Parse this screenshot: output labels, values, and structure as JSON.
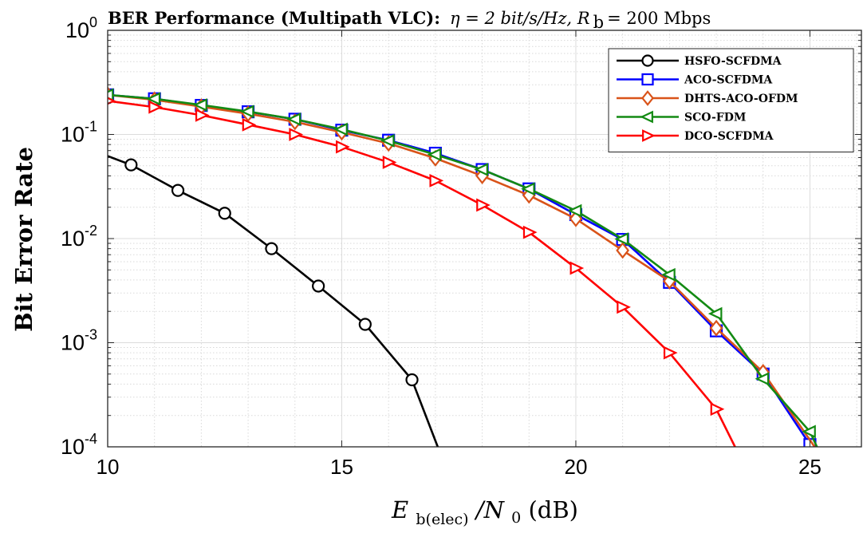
{
  "chart_data": {
    "type": "line",
    "title": "BER Performance (Multipath VLC): η = 2 bit/s/Hz, R_b = 200 Mbps",
    "title_bold": "BER Performance (Multipath VLC):",
    "title_rest": "η = 2 bit/s/Hz, R",
    "title_sub": "b",
    "title_tail": " = 200 Mbps",
    "xlabel": "E_b(elec)/N_0 (dB)",
    "xlabel_main": "E",
    "xlabel_sub": "b(elec)",
    "xlabel_mid": "/N",
    "xlabel_sub2": "0",
    "xlabel_tail": " (dB)",
    "ylabel": "Bit Error Rate",
    "xlim": [
      10,
      26.1
    ],
    "ylim": [
      0.0001,
      1
    ],
    "yscale": "log",
    "grid": true,
    "legend_position": "top-right",
    "x_ticks": [
      "10",
      "15",
      "20",
      "25"
    ],
    "x_tick_values": [
      10,
      15,
      20,
      25
    ],
    "y_ticks": [
      {
        "base": "10",
        "exp": "0",
        "value": 1
      },
      {
        "base": "10",
        "exp": "-1",
        "value": 0.1
      },
      {
        "base": "10",
        "exp": "-2",
        "value": 0.01
      },
      {
        "base": "10",
        "exp": "-3",
        "value": 0.001
      },
      {
        "base": "10",
        "exp": "-4",
        "value": 0.0001
      }
    ],
    "series": [
      {
        "name": "HSFO-SCFDMA",
        "color": "#000000",
        "marker": "circle",
        "x": [
          10,
          10.5,
          11.5,
          12.5,
          13.5,
          14.5,
          15.5,
          16.5,
          17.05
        ],
        "y": [
          0.062,
          0.051,
          0.029,
          0.0175,
          0.008,
          0.0035,
          0.0015,
          0.00044,
          0.0001
        ],
        "markers": [
          false,
          true,
          true,
          true,
          true,
          true,
          true,
          true,
          false
        ]
      },
      {
        "name": "ACO-SCFDMA",
        "color": "#0000ff",
        "marker": "square",
        "x": [
          10,
          11,
          12,
          13,
          14,
          15,
          16,
          17,
          18,
          19,
          20,
          21,
          22,
          23,
          24,
          25
        ],
        "y": [
          0.24,
          0.22,
          0.19,
          0.165,
          0.14,
          0.11,
          0.088,
          0.066,
          0.046,
          0.03,
          0.017,
          0.0098,
          0.0038,
          0.0013,
          0.0005,
          0.000105
        ],
        "markers": [
          true,
          true,
          true,
          true,
          true,
          true,
          true,
          true,
          true,
          true,
          true,
          true,
          true,
          true,
          true,
          true
        ]
      },
      {
        "name": "DHTS-ACO-OFDM",
        "color": "#d95319",
        "marker": "diamond",
        "x": [
          10,
          11,
          12,
          13,
          14,
          15,
          16,
          17,
          18,
          19,
          20,
          21,
          22,
          23,
          24,
          25.1
        ],
        "y": [
          0.24,
          0.215,
          0.185,
          0.158,
          0.132,
          0.105,
          0.082,
          0.059,
          0.04,
          0.026,
          0.0155,
          0.0077,
          0.0039,
          0.00138,
          0.00052,
          0.0001
        ],
        "markers": [
          true,
          true,
          true,
          true,
          true,
          true,
          true,
          true,
          true,
          true,
          true,
          true,
          true,
          true,
          true,
          false
        ]
      },
      {
        "name": "SCO-FDM",
        "color": "#138a13",
        "marker": "triangle-left",
        "x": [
          10,
          11,
          12,
          13,
          14,
          15,
          16,
          17,
          18,
          19,
          20,
          21,
          22,
          23,
          24,
          25,
          25.15
        ],
        "y": [
          0.24,
          0.22,
          0.192,
          0.166,
          0.14,
          0.112,
          0.087,
          0.064,
          0.046,
          0.03,
          0.0185,
          0.0099,
          0.0045,
          0.0019,
          0.00045,
          0.00014,
          0.0001
        ],
        "markers": [
          true,
          true,
          true,
          true,
          true,
          true,
          true,
          true,
          true,
          true,
          true,
          true,
          true,
          true,
          true,
          true,
          false
        ]
      },
      {
        "name": "DCO-SCFDMA",
        "color": "#ff0000",
        "marker": "triangle-right",
        "x": [
          10,
          11,
          12,
          13,
          14,
          15,
          16,
          17,
          18,
          19,
          20,
          21,
          22,
          23,
          23.4
        ],
        "y": [
          0.21,
          0.183,
          0.153,
          0.124,
          0.1,
          0.076,
          0.054,
          0.036,
          0.021,
          0.0115,
          0.0052,
          0.0022,
          0.0008,
          0.00023,
          0.0001
        ],
        "markers": [
          true,
          true,
          true,
          true,
          true,
          true,
          true,
          true,
          true,
          true,
          true,
          true,
          true,
          true,
          false
        ]
      }
    ]
  }
}
